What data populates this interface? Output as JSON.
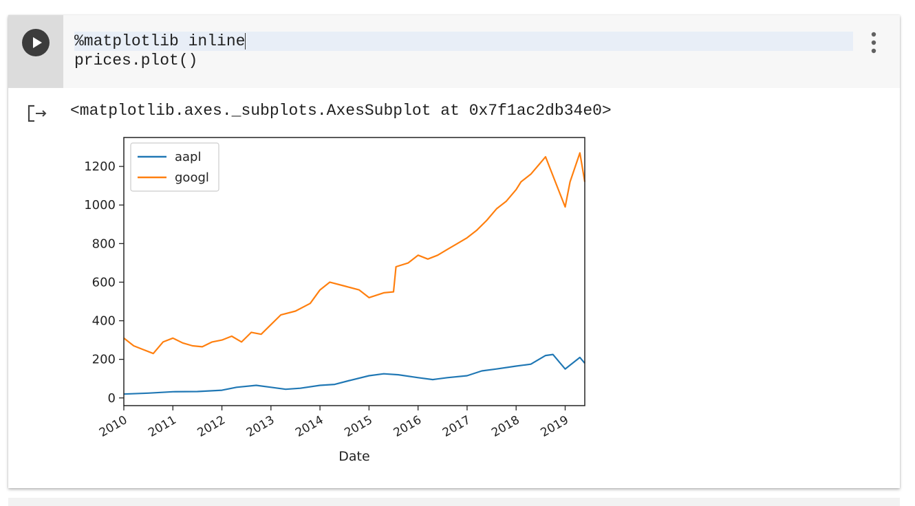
{
  "cell": {
    "code_lines": [
      "%matplotlib inline",
      "prices.plot()"
    ],
    "output_text": "<matplotlib.axes._subplots.AxesSubplot at 0x7f1ac2db34e0>",
    "run_icon": "play-icon",
    "menu_icon": "more-vert-icon",
    "output_icon": "output-arrow-icon"
  },
  "chart_data": {
    "type": "line",
    "xlabel": "Date",
    "ylabel": "",
    "xlim": [
      2010,
      2019.4
    ],
    "ylim": [
      -40,
      1350
    ],
    "x_ticks": [
      "2010",
      "2011",
      "2012",
      "2013",
      "2014",
      "2015",
      "2016",
      "2017",
      "2018",
      "2019"
    ],
    "y_ticks": [
      "0",
      "200",
      "400",
      "600",
      "800",
      "1000",
      "1200"
    ],
    "legend_placement": "upper-left",
    "grid": false,
    "series": [
      {
        "name": "aapl",
        "color": "#1f77b4",
        "x": [
          2010,
          2010.5,
          2011,
          2011.5,
          2012,
          2012.3,
          2012.7,
          2013,
          2013.3,
          2013.6,
          2014,
          2014.3,
          2014.6,
          2015,
          2015.3,
          2015.6,
          2016,
          2016.3,
          2016.6,
          2017,
          2017.3,
          2017.6,
          2018,
          2018.3,
          2018.6,
          2018.75,
          2018.9,
          2019,
          2019.1,
          2019.3,
          2019.4
        ],
        "y": [
          20,
          25,
          32,
          33,
          40,
          55,
          65,
          55,
          45,
          50,
          65,
          70,
          90,
          115,
          125,
          120,
          105,
          95,
          105,
          115,
          140,
          150,
          165,
          175,
          220,
          225,
          180,
          150,
          170,
          210,
          180
        ]
      },
      {
        "name": "googl",
        "color": "#ff7f0e",
        "x": [
          2010,
          2010.2,
          2010.4,
          2010.6,
          2010.8,
          2011,
          2011.2,
          2011.4,
          2011.6,
          2011.8,
          2012,
          2012.2,
          2012.4,
          2012.6,
          2012.8,
          2013,
          2013.2,
          2013.5,
          2013.8,
          2014,
          2014.2,
          2014.5,
          2014.8,
          2015,
          2015.3,
          2015.5,
          2015.55,
          2015.8,
          2016,
          2016.2,
          2016.4,
          2016.6,
          2016.8,
          2017,
          2017.2,
          2017.4,
          2017.6,
          2017.8,
          2018,
          2018.1,
          2018.3,
          2018.5,
          2018.6,
          2018.8,
          2019,
          2019.1,
          2019.3,
          2019.4
        ],
        "y": [
          310,
          270,
          250,
          230,
          290,
          310,
          285,
          270,
          265,
          290,
          300,
          320,
          290,
          340,
          330,
          380,
          430,
          450,
          490,
          560,
          600,
          580,
          560,
          520,
          545,
          550,
          680,
          700,
          740,
          720,
          740,
          770,
          800,
          830,
          870,
          920,
          980,
          1020,
          1080,
          1120,
          1160,
          1220,
          1250,
          1120,
          990,
          1120,
          1270,
          1120
        ]
      }
    ]
  }
}
